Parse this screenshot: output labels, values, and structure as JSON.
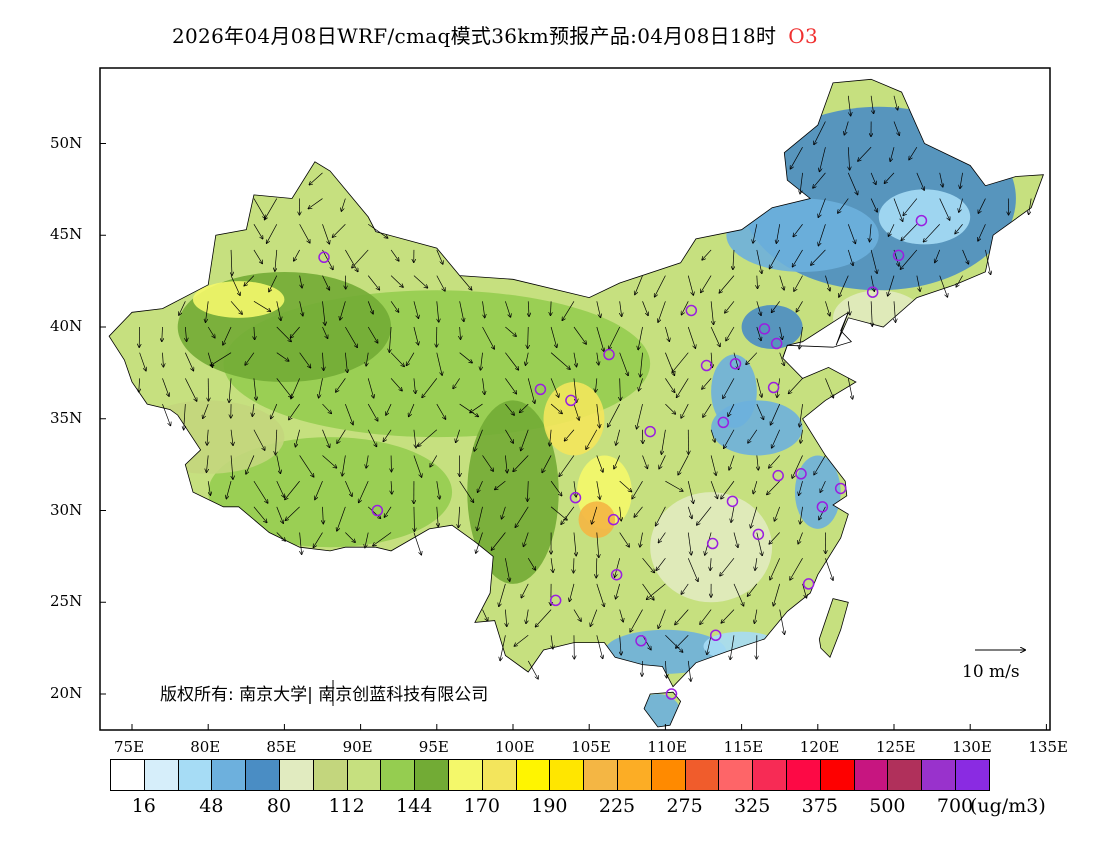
{
  "title": {
    "main": "2026年04月08日WRF/cmaq模式36km预报产品:04月08日18时",
    "species": "O3",
    "species_color": "#f03030"
  },
  "axes": {
    "lat_labels": [
      "50N",
      "45N",
      "40N",
      "35N",
      "30N",
      "25N",
      "20N"
    ],
    "lat_values": [
      50,
      45,
      40,
      35,
      30,
      25,
      20
    ],
    "lon_labels": [
      "75E",
      "80E",
      "85E",
      "90E",
      "95E",
      "100E",
      "105E",
      "110E",
      "115E",
      "120E",
      "125E",
      "130E",
      "135E"
    ],
    "lon_values": [
      75,
      80,
      85,
      90,
      95,
      100,
      105,
      110,
      115,
      120,
      125,
      130,
      135
    ]
  },
  "colorbar": {
    "colors": [
      "#ffffff",
      "#d6eefa",
      "#a6dcf5",
      "#6db0dd",
      "#4a8dc4",
      "#e1ebc0",
      "#c3d67d",
      "#c6e07f",
      "#95cd50",
      "#72ab35",
      "#f4f86a",
      "#f3e55c",
      "#fff500",
      "#ffe600",
      "#f4b644",
      "#fcad25",
      "#ff8a00",
      "#f05c2c",
      "#fe6568",
      "#f72b55",
      "#fd0945",
      "#fe0000",
      "#c71580",
      "#b0305b",
      "#9932cc",
      "#8a2be2"
    ],
    "labels": [
      "16",
      "48",
      "80",
      "112",
      "144",
      "170",
      "190",
      "225",
      "275",
      "325",
      "375",
      "500",
      "700"
    ],
    "unit": "(ug/m3)"
  },
  "copyright": "版权所有: 南京大学| 南京创蓝科技有限公司",
  "wind_scale": {
    "label": "10 m/s"
  },
  "stations": [
    [
      87.6,
      43.8
    ],
    [
      91.1,
      30.0
    ],
    [
      101.8,
      36.6
    ],
    [
      103.8,
      36.0
    ],
    [
      106.3,
      38.5
    ],
    [
      104.1,
      30.7
    ],
    [
      106.6,
      29.5
    ],
    [
      106.8,
      26.5
    ],
    [
      102.8,
      25.1
    ],
    [
      108.4,
      22.9
    ],
    [
      110.4,
      20.0
    ],
    [
      113.3,
      23.2
    ],
    [
      109.0,
      34.3
    ],
    [
      112.7,
      37.9
    ],
    [
      111.7,
      40.9
    ],
    [
      116.5,
      39.9
    ],
    [
      117.3,
      39.1
    ],
    [
      114.6,
      38.0
    ],
    [
      117.1,
      36.7
    ],
    [
      113.8,
      34.8
    ],
    [
      114.4,
      30.5
    ],
    [
      113.1,
      28.2
    ],
    [
      116.1,
      28.7
    ],
    [
      117.4,
      31.9
    ],
    [
      118.9,
      32.0
    ],
    [
      121.5,
      31.2
    ],
    [
      120.3,
      30.2
    ],
    [
      119.4,
      26.0
    ],
    [
      123.6,
      41.9
    ],
    [
      125.3,
      43.9
    ],
    [
      126.8,
      45.8
    ]
  ]
}
